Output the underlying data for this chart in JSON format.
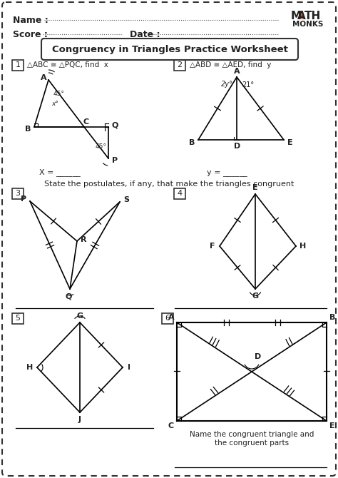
{
  "title": "Congruency in Triangles Practice Worksheet",
  "bg_color": "#ffffff",
  "border_color": "#333333",
  "name_label": "Name :",
  "score_label": "Score :",
  "date_label": "Date :",
  "q1_text": "△ABC ≅ △PQC, find  x",
  "q2_text": "△ABD ≅ △AED, find  y",
  "postulate_text": "State the postulates, if any, that make the triangles congruent",
  "x_eq": "X = ______",
  "y_eq": "y = ______",
  "q6_text": "Name the congruent triangle and\nthe congruent parts"
}
